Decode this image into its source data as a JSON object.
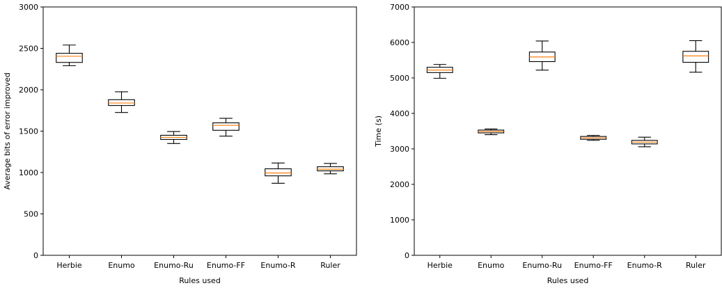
{
  "chart_data": [
    {
      "type": "boxplot",
      "xlabel": "Rules used",
      "ylabel": "Average bits of error improved",
      "ylim": [
        0,
        3000
      ],
      "yticks": [
        0,
        500,
        1000,
        1500,
        2000,
        2500,
        3000
      ],
      "categories": [
        "Herbie",
        "Enumo",
        "Enumo-Ru",
        "Enumo-FF",
        "Enumo-R",
        "Ruler"
      ],
      "boxes": [
        {
          "whislo": 2290,
          "q1": 2330,
          "med": 2405,
          "q3": 2440,
          "whishi": 2540
        },
        {
          "whislo": 1725,
          "q1": 1810,
          "med": 1840,
          "q3": 1880,
          "whishi": 1975
        },
        {
          "whislo": 1350,
          "q1": 1400,
          "med": 1425,
          "q3": 1450,
          "whishi": 1495
        },
        {
          "whislo": 1440,
          "q1": 1510,
          "med": 1570,
          "q3": 1600,
          "whishi": 1655
        },
        {
          "whislo": 870,
          "q1": 960,
          "med": 995,
          "q3": 1045,
          "whishi": 1115
        },
        {
          "whislo": 985,
          "q1": 1020,
          "med": 1040,
          "q3": 1070,
          "whishi": 1110
        }
      ],
      "grid": false,
      "box_edge_color": "#000000",
      "median_color": "#ff7f0e"
    },
    {
      "type": "boxplot",
      "xlabel": "Rules used",
      "ylabel": "Time (s)",
      "ylim": [
        0,
        7000
      ],
      "yticks": [
        0,
        1000,
        2000,
        3000,
        4000,
        5000,
        6000,
        7000
      ],
      "categories": [
        "Herbie",
        "Enumo",
        "Enumo-Ru",
        "Enumo-FF",
        "Enumo-R",
        "Ruler"
      ],
      "boxes": [
        {
          "whislo": 4990,
          "q1": 5150,
          "med": 5220,
          "q3": 5300,
          "whishi": 5380
        },
        {
          "whislo": 3400,
          "q1": 3450,
          "med": 3490,
          "q3": 3530,
          "whishi": 3560
        },
        {
          "whislo": 5220,
          "q1": 5460,
          "med": 5590,
          "q3": 5730,
          "whishi": 6040
        },
        {
          "whislo": 3240,
          "q1": 3270,
          "med": 3310,
          "q3": 3350,
          "whishi": 3380
        },
        {
          "whislo": 3060,
          "q1": 3140,
          "med": 3190,
          "q3": 3240,
          "whishi": 3330
        },
        {
          "whislo": 5160,
          "q1": 5440,
          "med": 5620,
          "q3": 5750,
          "whishi": 6050
        }
      ],
      "grid": false,
      "box_edge_color": "#000000",
      "median_color": "#ff7f0e"
    }
  ]
}
